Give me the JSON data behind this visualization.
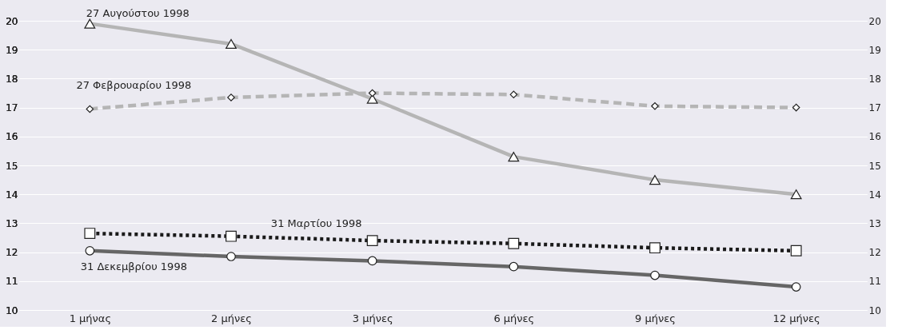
{
  "chart_data": {
    "type": "line",
    "categories": [
      "1 μήνας",
      "2 μήνες",
      "3 μήνες",
      "6 μήνες",
      "9 μήνες",
      "12 μήνες"
    ],
    "series": [
      {
        "name": "27 Αυγούστου 1998",
        "color": "#b5b5b5",
        "marker": "triangle",
        "line_style": "solid",
        "values": [
          19.9,
          19.2,
          17.3,
          15.3,
          14.5,
          14.0
        ]
      },
      {
        "name": "27 Φεβρουαρίου 1998",
        "color": "#b5b5b5",
        "marker": "diamond",
        "line_style": "dashed",
        "values": [
          16.95,
          17.35,
          17.5,
          17.45,
          17.05,
          17.0
        ]
      },
      {
        "name": "31 Μαρτίου 1998",
        "color": "#1a1a1a",
        "marker": "square",
        "line_style": "dotted",
        "values": [
          12.65,
          12.55,
          12.4,
          12.3,
          12.15,
          12.05
        ]
      },
      {
        "name": "31 Δεκεμβρίου 1998",
        "color": "#666666",
        "marker": "circle",
        "line_style": "solid",
        "values": [
          12.05,
          11.85,
          11.7,
          11.5,
          11.2,
          10.8
        ]
      }
    ],
    "ylim": [
      10,
      20
    ],
    "yticks": [
      10,
      11,
      12,
      13,
      14,
      15,
      16,
      17,
      18,
      19,
      20
    ],
    "y2lim": [
      10,
      20
    ],
    "y2ticks": [
      10,
      11,
      12,
      13,
      14,
      15,
      16,
      17,
      18,
      19,
      20
    ],
    "grid": "y"
  }
}
